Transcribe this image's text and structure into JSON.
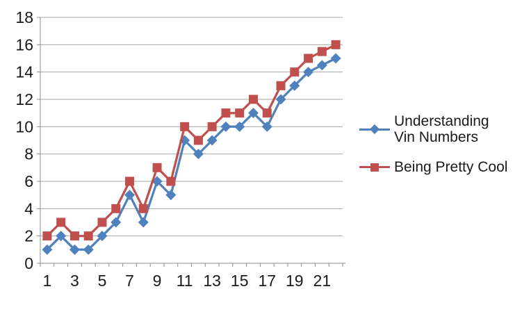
{
  "chart_data": {
    "type": "line",
    "title": "",
    "xlabel": "",
    "ylabel": "",
    "x": [
      1,
      2,
      3,
      4,
      5,
      6,
      7,
      8,
      9,
      10,
      11,
      12,
      13,
      14,
      15,
      16,
      17,
      18,
      19,
      20,
      21,
      22
    ],
    "x_tick_labels": [
      "1",
      "3",
      "5",
      "7",
      "9",
      "11",
      "13",
      "15",
      "17",
      "19",
      "21"
    ],
    "y_tick_labels": [
      "0",
      "2",
      "4",
      "6",
      "8",
      "10",
      "12",
      "14",
      "16",
      "18"
    ],
    "ylim": [
      0,
      18
    ],
    "ytick_step": 2,
    "grid": true,
    "legend_position": "right",
    "series": [
      {
        "name": "Understanding Vin Numbers",
        "color": "#4F81BD",
        "marker": "diamond",
        "values": [
          1,
          2,
          1,
          1,
          2,
          3,
          5,
          3,
          6,
          5,
          9,
          8,
          9,
          10,
          10,
          11,
          10,
          12,
          13,
          14,
          14.5,
          15
        ]
      },
      {
        "name": "Being Pretty Cool",
        "color": "#C0504D",
        "marker": "square",
        "values": [
          2,
          3,
          2,
          2,
          3,
          4,
          6,
          4,
          7,
          6,
          10,
          9,
          10,
          11,
          11,
          12,
          11,
          13,
          14,
          15,
          15.5,
          16
        ]
      }
    ]
  },
  "colors": {
    "gridline": "#A6A6A6",
    "axis": "#8C8C8C",
    "label": "#1A1A1A",
    "background": "#FFFFFF"
  }
}
